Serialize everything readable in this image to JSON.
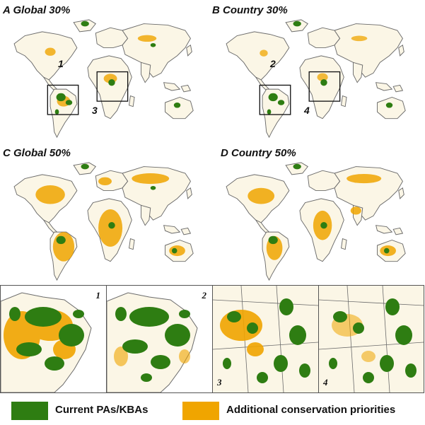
{
  "panels": [
    {
      "id": "A",
      "label": "A Global 30%",
      "boxes": [
        "1",
        "3"
      ]
    },
    {
      "id": "B",
      "label": "B Country 30%",
      "boxes": [
        "2",
        "4"
      ]
    },
    {
      "id": "C",
      "label": "C Global 50%",
      "boxes": []
    },
    {
      "id": "D",
      "label": "D Country 50%",
      "boxes": []
    }
  ],
  "zoom_panels": [
    {
      "number": "1",
      "region": "South America",
      "scenario": "Global 30%"
    },
    {
      "number": "2",
      "region": "South America",
      "scenario": "Country 30%"
    },
    {
      "number": "3",
      "region": "Central Africa",
      "scenario": "Global 30%"
    },
    {
      "number": "4",
      "region": "Central Africa",
      "scenario": "Country 30%"
    }
  ],
  "legend": [
    {
      "label": "Current PAs/KBAs",
      "color": "#2e7d12"
    },
    {
      "label": "Additional conservation priorities",
      "color": "#f0a500"
    }
  ],
  "colors": {
    "green": "#2e7d12",
    "orange": "#f0a500",
    "land": "#fbf6e6",
    "outline": "#6b6b6b"
  }
}
